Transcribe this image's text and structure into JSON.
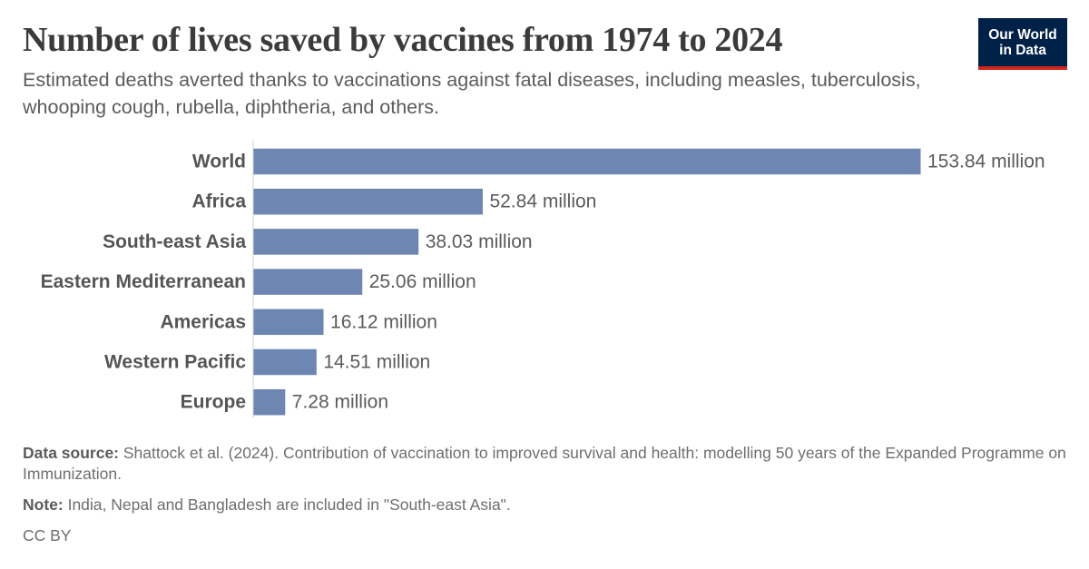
{
  "header": {
    "title": "Number of lives saved by vaccines from 1974 to 2024",
    "subtitle": "Estimated deaths averted thanks to vaccinations against fatal diseases, including measles, tuberculosis, whooping cough, rubella, diphtheria, and others."
  },
  "logo": {
    "line1": "Our World",
    "line2": "in Data",
    "bg_color": "#002147",
    "accent_color": "#ce261e"
  },
  "chart_data": {
    "type": "bar",
    "orientation": "horizontal",
    "categories": [
      "World",
      "Africa",
      "South-east Asia",
      "Eastern Mediterranean",
      "Americas",
      "Western Pacific",
      "Europe"
    ],
    "values": [
      153.84,
      52.84,
      38.03,
      25.06,
      16.12,
      14.51,
      7.28
    ],
    "value_labels": [
      "153.84 million",
      "52.84 million",
      "38.03 million",
      "25.06 million",
      "16.12 million",
      "14.51 million",
      "7.28 million"
    ],
    "unit": "million",
    "xlim": [
      0,
      153.84
    ],
    "bar_color": "#6d87b2",
    "grid": false,
    "legend": "none"
  },
  "footer": {
    "source_label": "Data source:",
    "source_text": " Shattock et al. (2024). Contribution of vaccination to improved survival and health: modelling 50 years of the Expanded Programme on Immunization.",
    "note_label": "Note:",
    "note_text": " India, Nepal and Bangladesh are included in \"South-east Asia\".",
    "license": "CC BY"
  }
}
